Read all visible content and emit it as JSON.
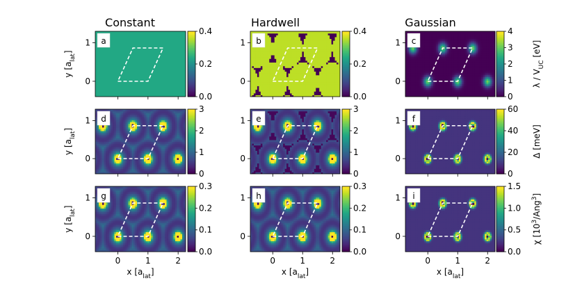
{
  "figure": {
    "column_titles": [
      "Constant",
      "Hardwell",
      "Gaussian"
    ],
    "row_ylabel": "y [a",
    "ylabel_sub": "lat",
    "ylabel_end": "]",
    "col_xlabel": "x [a",
    "xlabel_sub": "lat",
    "xlabel_end": "]"
  },
  "chart_data": [
    {
      "panel": "a",
      "type": "heatmap",
      "model": "constant",
      "quantity": "lambda",
      "xticks": [
        "0",
        "1",
        "2"
      ],
      "yticks": [
        "0",
        "1"
      ],
      "xlim": [
        -0.75,
        2.25
      ],
      "ylim": [
        -0.4,
        1.3
      ],
      "cbar_ticks": [
        "0.0",
        "0.2",
        "0.4"
      ],
      "cbar_range": [
        0,
        0.4
      ],
      "cbar_label": "",
      "value": 0.25,
      "cell_outline": [
        [
          0,
          0
        ],
        [
          1,
          0
        ],
        [
          1.5,
          0.866
        ],
        [
          0.5,
          0.866
        ]
      ]
    },
    {
      "panel": "b",
      "type": "heatmap",
      "model": "hardwell",
      "quantity": "lambda",
      "xticks": [
        "0",
        "1",
        "2"
      ],
      "yticks": [
        "0",
        "1"
      ],
      "xlim": [
        -0.75,
        2.25
      ],
      "ylim": [
        -0.4,
        1.3
      ],
      "cbar_ticks": [
        "0.0",
        "0.2",
        "0.4"
      ],
      "cbar_range": [
        0,
        0.4
      ],
      "cbar_label": "",
      "disk_value": 0.36,
      "disk_radius": 0.5,
      "gap_value": 0.0
    },
    {
      "panel": "c",
      "type": "heatmap",
      "model": "gaussian",
      "quantity": "lambda",
      "xticks": [
        "0",
        "1",
        "2"
      ],
      "yticks": [
        "0",
        "1"
      ],
      "xlim": [
        -0.75,
        2.25
      ],
      "ylim": [
        -0.4,
        1.3
      ],
      "cbar_ticks": [
        "0",
        "1",
        "2",
        "3",
        "4"
      ],
      "cbar_range": [
        0,
        4
      ],
      "cbar_label_main": "λ / V",
      "cbar_label_sub": "UC",
      "cbar_label_unit": " [eV]",
      "peak_value": 3.2,
      "width": 0.09
    },
    {
      "panel": "d",
      "type": "heatmap",
      "model": "constant",
      "quantity": "delta",
      "xticks": [
        "0",
        "1",
        "2"
      ],
      "yticks": [
        "0",
        "1"
      ],
      "xlim": [
        -0.75,
        2.25
      ],
      "ylim": [
        -0.4,
        1.3
      ],
      "cbar_ticks": [
        "0",
        "1",
        "2",
        "3"
      ],
      "cbar_range": [
        0,
        3
      ],
      "cbar_label": ""
    },
    {
      "panel": "e",
      "type": "heatmap",
      "model": "hardwell",
      "quantity": "delta",
      "xticks": [
        "0",
        "1",
        "2"
      ],
      "yticks": [
        "0",
        "1"
      ],
      "xlim": [
        -0.75,
        2.25
      ],
      "ylim": [
        -0.4,
        1.3
      ],
      "cbar_ticks": [
        "0",
        "1",
        "2",
        "3"
      ],
      "cbar_range": [
        0,
        3
      ],
      "cbar_label": ""
    },
    {
      "panel": "f",
      "type": "heatmap",
      "model": "gaussian",
      "quantity": "delta",
      "xticks": [
        "0",
        "1",
        "2"
      ],
      "yticks": [
        "0",
        "1"
      ],
      "xlim": [
        -0.75,
        2.25
      ],
      "ylim": [
        -0.4,
        1.3
      ],
      "cbar_ticks": [
        "0",
        "20",
        "40",
        "60"
      ],
      "cbar_range": [
        0,
        60
      ],
      "cbar_label_main": "Δ [meV]"
    },
    {
      "panel": "g",
      "type": "heatmap",
      "model": "constant",
      "quantity": "chi",
      "xticks": [
        "0",
        "1",
        "2"
      ],
      "yticks": [
        "0",
        "1"
      ],
      "xlim": [
        -0.75,
        2.25
      ],
      "ylim": [
        -0.4,
        1.3
      ],
      "cbar_ticks": [
        "0.0",
        "0.1",
        "0.2",
        "0.3"
      ],
      "cbar_range": [
        0,
        0.3
      ],
      "cbar_label": ""
    },
    {
      "panel": "h",
      "type": "heatmap",
      "model": "hardwell",
      "quantity": "chi",
      "xticks": [
        "0",
        "1",
        "2"
      ],
      "yticks": [
        "0",
        "1"
      ],
      "xlim": [
        -0.75,
        2.25
      ],
      "ylim": [
        -0.4,
        1.3
      ],
      "cbar_ticks": [
        "0.0",
        "0.1",
        "0.2",
        "0.3"
      ],
      "cbar_range": [
        0,
        0.3
      ],
      "cbar_label": ""
    },
    {
      "panel": "i",
      "type": "heatmap",
      "model": "gaussian",
      "quantity": "chi",
      "xticks": [
        "0",
        "1",
        "2"
      ],
      "yticks": [
        "0",
        "1"
      ],
      "xlim": [
        -0.75,
        2.25
      ],
      "ylim": [
        -0.4,
        1.3
      ],
      "cbar_ticks": [
        "0.0",
        "0.5",
        "1.0",
        "1.5"
      ],
      "cbar_range": [
        0,
        1.5
      ],
      "cbar_label_main": "χ [10",
      "cbar_label_sup": "3",
      "cbar_label_unit": "/Ang",
      "cbar_label_sup2": "3",
      "cbar_label_end": "]"
    }
  ],
  "lattice": {
    "atoms": [
      [
        0,
        0
      ],
      [
        1,
        0
      ],
      [
        2,
        0
      ],
      [
        0.5,
        0.866
      ],
      [
        1.5,
        0.866
      ],
      [
        -0.5,
        0.866
      ],
      [
        2.5,
        0.866
      ],
      [
        -0.5,
        -0.866
      ],
      [
        0.5,
        -0.866
      ],
      [
        1.5,
        -0.866
      ],
      [
        -1,
        0
      ],
      [
        0,
        1.732
      ],
      [
        1,
        1.732
      ],
      [
        2,
        1.732
      ]
    ],
    "colormap": [
      "#440154",
      "#482475",
      "#414487",
      "#355f8d",
      "#2a788e",
      "#21918c",
      "#22a884",
      "#44bf70",
      "#7ad151",
      "#bddf26",
      "#fde725"
    ],
    "outline_color": "#ffffff"
  }
}
